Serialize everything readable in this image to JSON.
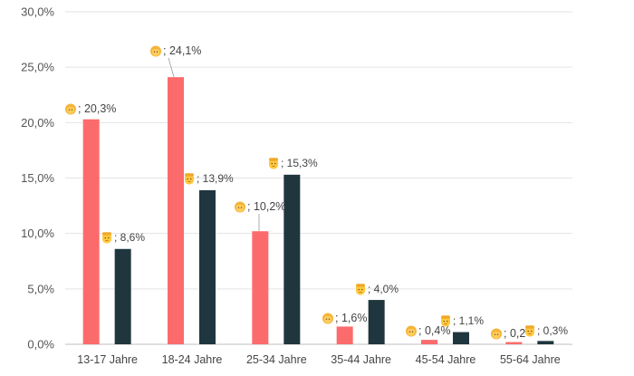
{
  "chart_data": {
    "type": "bar",
    "title": "",
    "xlabel": "",
    "ylabel": "",
    "ylim": [
      0,
      30
    ],
    "y_ticks": [
      "0,0%",
      "5,0%",
      "10,0%",
      "15,0%",
      "20,0%",
      "25,0%",
      "30,0%"
    ],
    "grid": true,
    "legend": "none",
    "categories": [
      "13-17 Jahre",
      "18-24 Jahre",
      "25-34 Jahre",
      "35-44 Jahre",
      "45-54 Jahre",
      "55-64 Jahre"
    ],
    "series": [
      {
        "color": "#fc6b6b",
        "marker_icon": "woman-emoji-icon",
        "values": [
          20.3,
          24.1,
          10.2,
          1.6,
          0.4,
          0.2
        ],
        "labels": [
          "; 20,3%",
          "; 24,1%",
          "; 10,2%",
          "; 1,6%",
          "; 0,4%",
          "; 0,2"
        ]
      },
      {
        "color": "#1f363f",
        "marker_icon": "man-emoji-icon",
        "values": [
          8.6,
          13.9,
          15.3,
          4.0,
          1.1,
          0.3
        ],
        "labels": [
          "; 8,6%",
          "; 13,9%",
          "; 15,3%",
          "; 4,0%",
          "; 1,1%",
          "; 0,3%"
        ]
      }
    ]
  }
}
